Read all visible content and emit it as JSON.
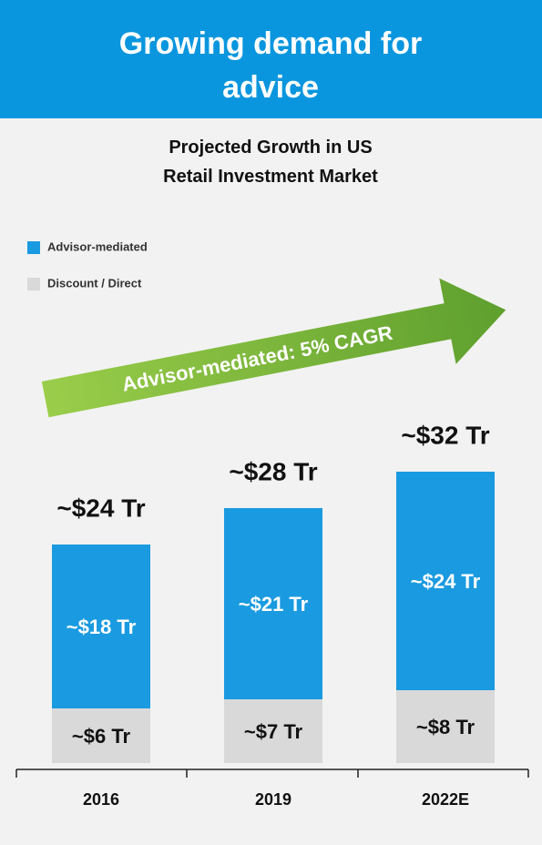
{
  "chart_data": {
    "type": "stacked_bar",
    "header": "Growing demand for advice",
    "title": "Projected Growth in US Retail Investment Market",
    "annotation": "Advisor-mediated: 5% CAGR",
    "categories": [
      "2016",
      "2019",
      "2022E"
    ],
    "series": [
      {
        "name": "Discount / Direct",
        "color": "#d9d9d9",
        "values": [
          6,
          7,
          8
        ],
        "value_labels": [
          "~$6 Tr",
          "~$7 Tr",
          "~$8 Tr"
        ]
      },
      {
        "name": "Advisor-mediated",
        "color": "#1a9ae0",
        "values": [
          18,
          21,
          24
        ],
        "value_labels": [
          "~$18 Tr",
          "~$21 Tr",
          "~$24 Tr"
        ]
      }
    ],
    "totals": [
      24,
      28,
      32
    ],
    "total_labels": [
      "~$24 Tr",
      "~$28 Tr",
      "~$32 Tr"
    ]
  }
}
